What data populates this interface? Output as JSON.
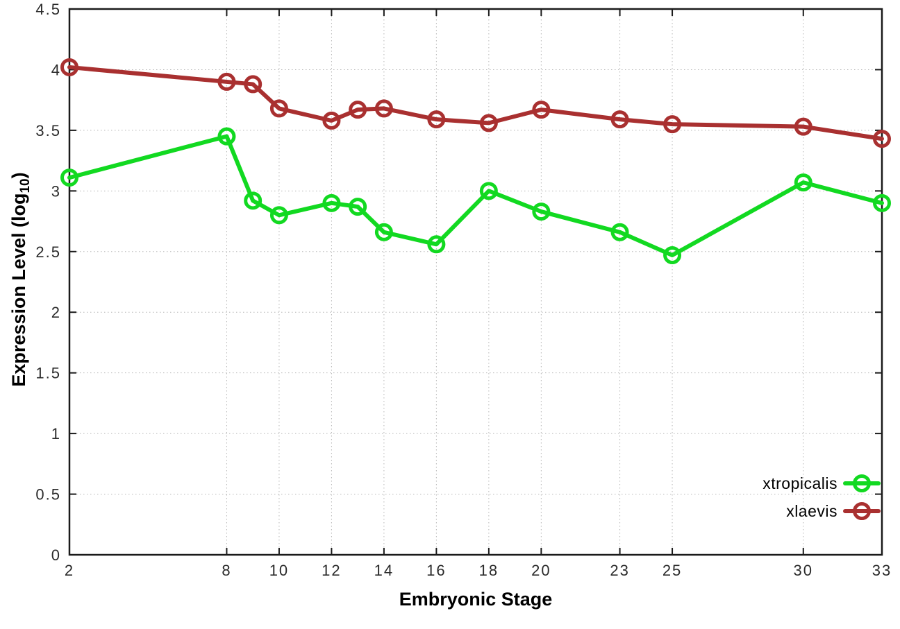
{
  "chart_data": {
    "type": "line",
    "title": "",
    "xlabel": "Embryonic Stage",
    "ylabel": "Expression Level (log10)",
    "ylabel_parts": {
      "prefix": "Expression Level (log",
      "subscript": "10",
      "suffix": ")"
    },
    "xlim": [
      2,
      33
    ],
    "ylim": [
      0,
      4.5
    ],
    "grid": true,
    "legend_position": "bottom-right",
    "background_color": "#ffffff",
    "grid_color": "#b5b5b5",
    "border_color": "#1a1a1a",
    "x": [
      2,
      8,
      9,
      10,
      12,
      13,
      14,
      16,
      18,
      20,
      23,
      25,
      30,
      33
    ],
    "series": [
      {
        "name": "xtropicalis",
        "color": "#12d921",
        "marker": "open-circle",
        "values": [
          3.11,
          3.45,
          2.92,
          2.8,
          2.9,
          2.87,
          2.66,
          2.56,
          3.0,
          2.83,
          2.66,
          2.47,
          3.07,
          2.9
        ]
      },
      {
        "name": "xlaevis",
        "color": "#a93030",
        "marker": "open-circle",
        "values": [
          4.02,
          3.9,
          3.88,
          3.68,
          3.58,
          3.67,
          3.68,
          3.59,
          3.56,
          3.67,
          3.59,
          3.55,
          3.53,
          3.43
        ]
      }
    ],
    "xticks": {
      "values": [
        2,
        8,
        10,
        12,
        14,
        16,
        18,
        20,
        23,
        25,
        30,
        33
      ],
      "labels": [
        "2",
        "8",
        "10",
        "12",
        "14",
        "16",
        "18",
        "20",
        "23",
        "25",
        "30",
        "33"
      ]
    },
    "yticks": {
      "values": [
        0,
        0.5,
        1,
        1.5,
        2,
        2.5,
        3,
        3.5,
        4,
        4.5
      ],
      "labels": [
        "0",
        "0.5",
        "1",
        "1.5",
        "2",
        "2.5",
        "3",
        "3.5",
        "4",
        "4.5"
      ]
    }
  }
}
